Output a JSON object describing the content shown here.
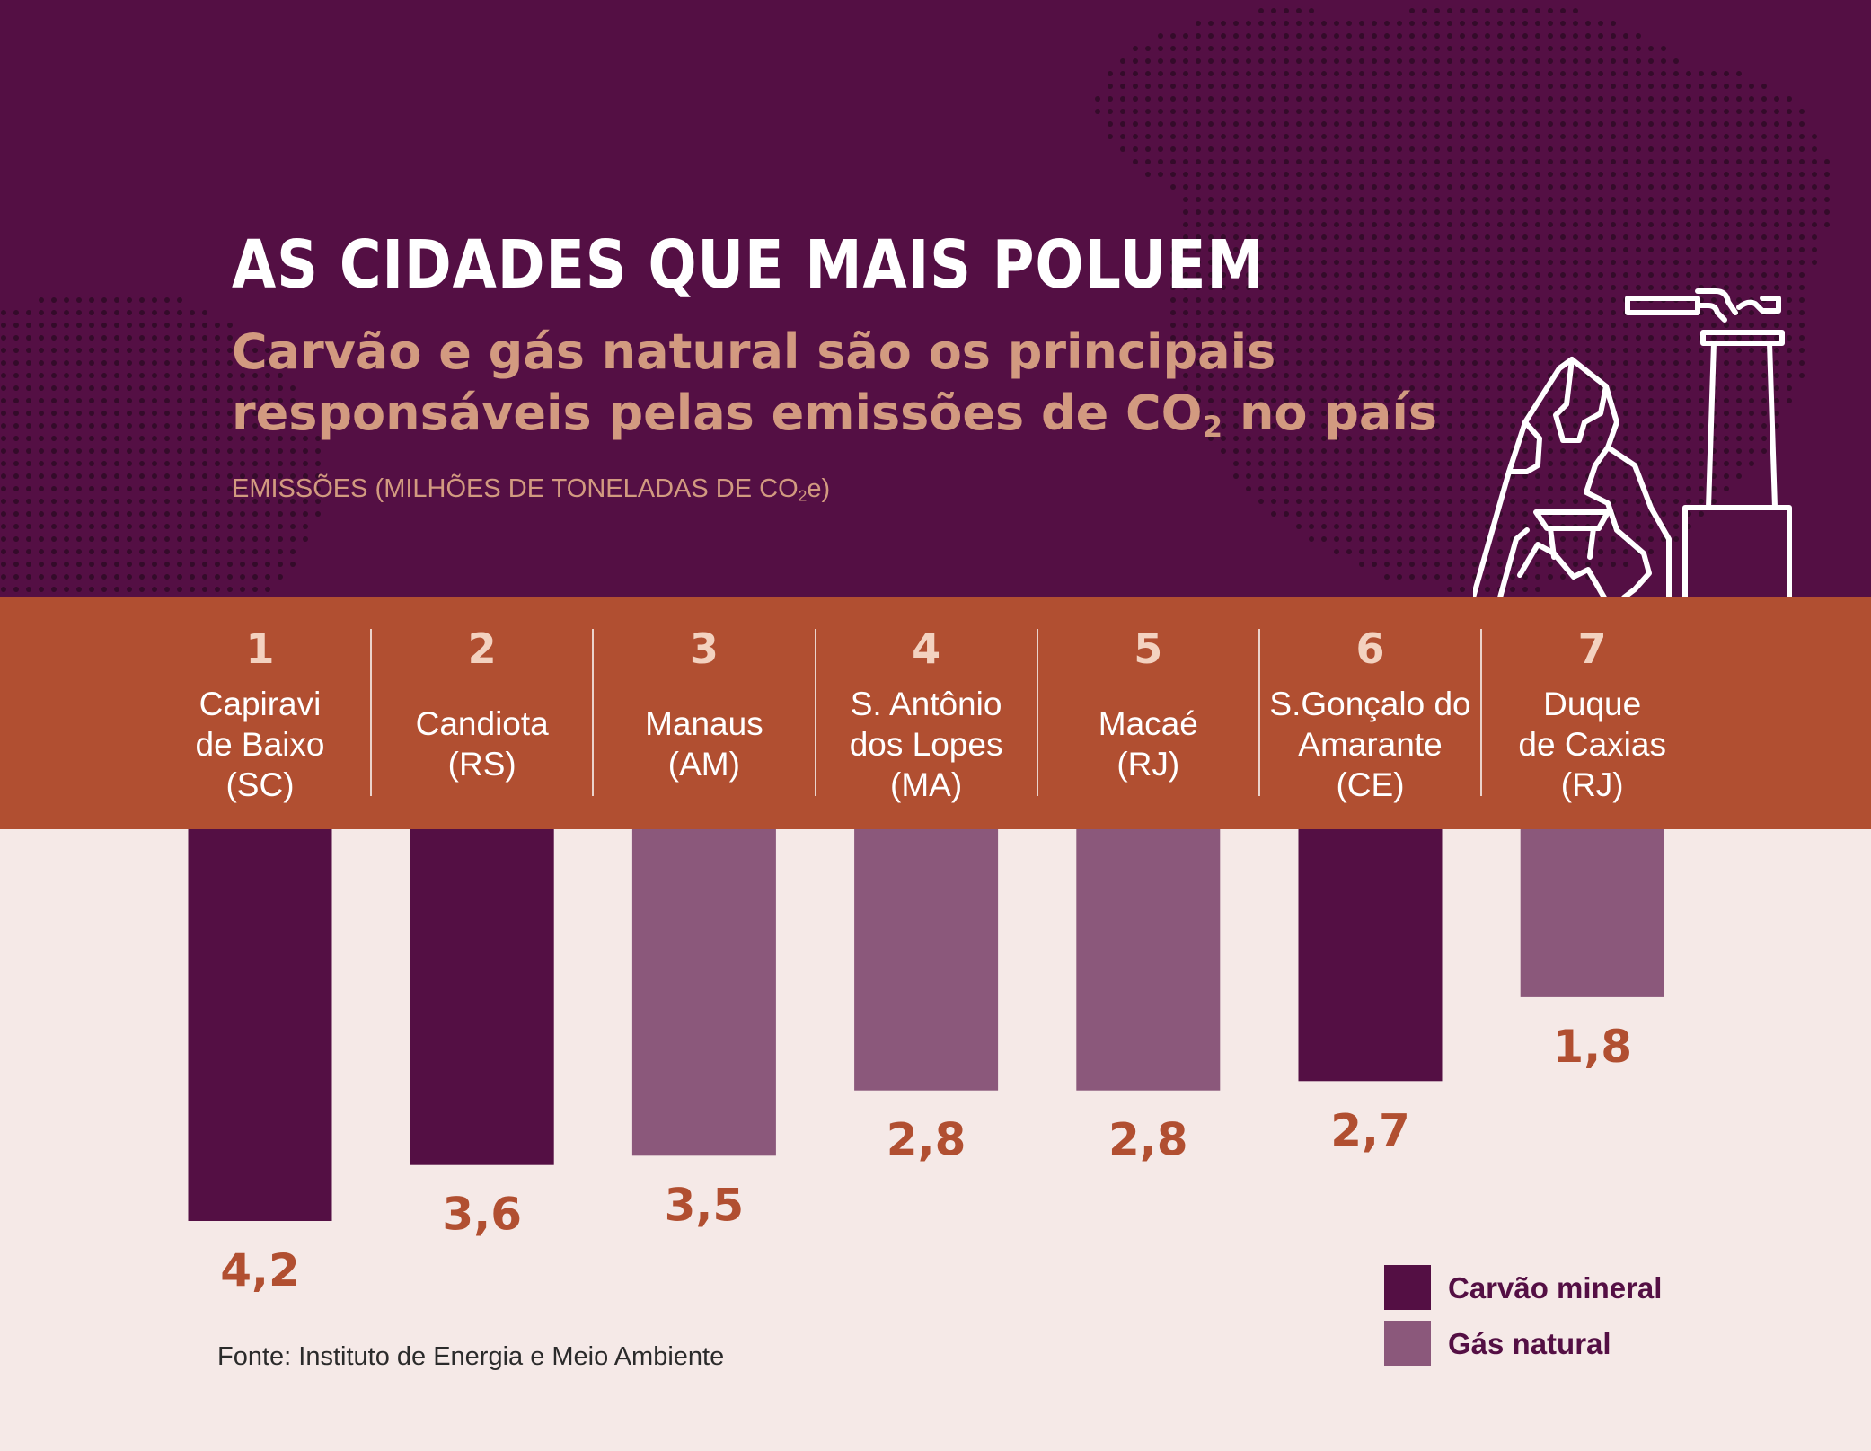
{
  "header": {
    "title": "AS CIDADES QUE MAIS POLUEM",
    "subtitle_line1": "Carvão e gás natural são os principais",
    "subtitle_line2_prefix": "responsáveis pelas emissões de CO",
    "subtitle_line2_sub": "2",
    "subtitle_line2_suffix": " no país",
    "unit_prefix": "EMISSÕES (MILHÕES DE TONELADAS DE CO",
    "unit_sub": "2",
    "unit_suffix": "e)"
  },
  "colors": {
    "header_bg": "#540f44",
    "band_bg": "#b14f31",
    "carvao": "#540f44",
    "gas": "#8b587b",
    "label": "#b14f31",
    "background": "#f5e9e7"
  },
  "chart_data": {
    "type": "bar",
    "orientation": "vertical-downward",
    "title": "AS CIDADES QUE MAIS POLUEM",
    "ylabel": "EMISSÕES (MILHÕES DE TONELADAS DE CO2e)",
    "ylim": [
      0,
      4.2
    ],
    "categories": [
      {
        "rank": "1",
        "city": "Capiravi\nde Baixo\n(SC)",
        "value": 4.2,
        "value_label": "4,2",
        "source": "carvao"
      },
      {
        "rank": "2",
        "city": "Candiota\n(RS)",
        "value": 3.6,
        "value_label": "3,6",
        "source": "carvao"
      },
      {
        "rank": "3",
        "city": "Manaus\n(AM)",
        "value": 3.5,
        "value_label": "3,5",
        "source": "gas"
      },
      {
        "rank": "4",
        "city": "S. Antônio\ndos Lopes\n(MA)",
        "value": 2.8,
        "value_label": "2,8",
        "source": "gas"
      },
      {
        "rank": "5",
        "city": "Macaé\n(RJ)",
        "value": 2.8,
        "value_label": "2,8",
        "source": "gas"
      },
      {
        "rank": "6",
        "city": "S.Gonçalo do\nAmarante\n(CE)",
        "value": 2.7,
        "value_label": "2,7",
        "source": "carvao"
      },
      {
        "rank": "7",
        "city": "Duque\nde Caxias\n(RJ)",
        "value": 1.8,
        "value_label": "1,8",
        "source": "gas"
      }
    ],
    "legend": [
      {
        "key": "carvao",
        "label": "Carvão mineral"
      },
      {
        "key": "gas",
        "label": "Gás natural"
      }
    ]
  },
  "footer": {
    "source": "Fonte: Instituto de Energia e Meio Ambiente"
  }
}
